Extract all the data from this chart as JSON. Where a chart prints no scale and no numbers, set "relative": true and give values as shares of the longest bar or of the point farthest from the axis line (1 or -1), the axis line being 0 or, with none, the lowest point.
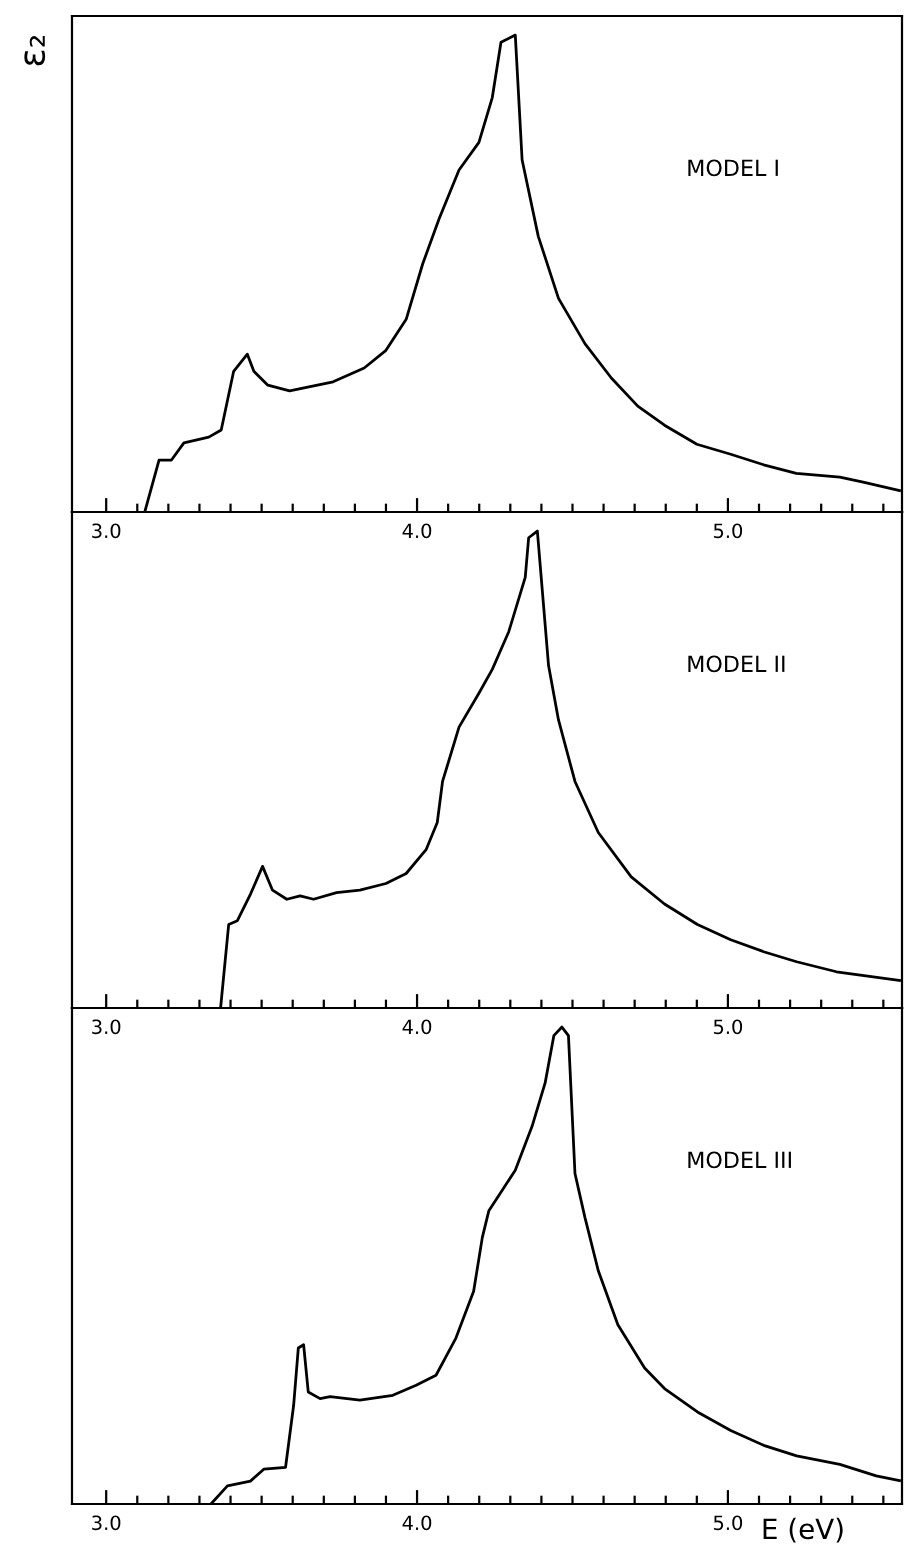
{
  "chart_data": [
    {
      "type": "line",
      "ylabel": "ε₂",
      "relative": true,
      "tick_labels": "x",
      "xlim": [
        2.89,
        5.56
      ],
      "annotations": [
        "MODEL I"
      ],
      "color": "#000000",
      "x": [
        3.124,
        3.17,
        3.21,
        3.25,
        3.33,
        3.37,
        3.41,
        3.454,
        3.475,
        3.52,
        3.59,
        3.73,
        3.83,
        3.9,
        3.965,
        4.018,
        4.071,
        4.135,
        4.199,
        4.242,
        4.27,
        4.316,
        4.338,
        4.39,
        4.455,
        4.54,
        4.625,
        4.71,
        4.796,
        4.9,
        5.009,
        5.115,
        5.22,
        5.36,
        5.435,
        5.552
      ],
      "values": [
        0,
        0.109,
        0.109,
        0.145,
        0.157,
        0.172,
        0.295,
        0.331,
        0.295,
        0.266,
        0.254,
        0.273,
        0.302,
        0.339,
        0.404,
        0.52,
        0.615,
        0.717,
        0.775,
        0.869,
        0.985,
        1,
        0.738,
        0.578,
        0.448,
        0.353,
        0.281,
        0.222,
        0.182,
        0.142,
        0.121,
        0.099,
        0.081,
        0.073,
        0.0625,
        0.045
      ],
      "xticks": [
        {
          "value": 3.0,
          "label": "3.0"
        },
        {
          "value": 3.1,
          "label": null
        },
        {
          "value": 3.2,
          "label": null
        },
        {
          "value": 3.3,
          "label": null
        },
        {
          "value": 3.4,
          "label": null
        },
        {
          "value": 3.5,
          "label": null
        },
        {
          "value": 3.6,
          "label": null
        },
        {
          "value": 3.7,
          "label": null
        },
        {
          "value": 3.8,
          "label": null
        },
        {
          "value": 3.9,
          "label": null
        },
        {
          "value": 4.0,
          "label": "4.0"
        },
        {
          "value": 4.1,
          "label": null
        },
        {
          "value": 4.2,
          "label": null
        },
        {
          "value": 4.3,
          "label": null
        },
        {
          "value": 4.4,
          "label": null
        },
        {
          "value": 4.5,
          "label": null
        },
        {
          "value": 4.6,
          "label": null
        },
        {
          "value": 4.7,
          "label": null
        },
        {
          "value": 4.8,
          "label": null
        },
        {
          "value": 4.9,
          "label": null
        },
        {
          "value": 5.0,
          "label": "5.0"
        },
        {
          "value": 5.1,
          "label": null
        },
        {
          "value": 5.2,
          "label": null
        },
        {
          "value": 5.3,
          "label": null
        },
        {
          "value": 5.4,
          "label": null
        },
        {
          "value": 5.5,
          "label": null
        }
      ]
    },
    {
      "type": "line",
      "relative": true,
      "tick_labels": "x",
      "xlim": [
        2.89,
        5.56
      ],
      "annotations": [
        "MODEL II"
      ],
      "color": "#000000",
      "x": [
        3.368,
        3.394,
        3.422,
        3.465,
        3.503,
        3.535,
        3.581,
        3.624,
        3.667,
        3.741,
        3.816,
        3.9,
        3.965,
        4.029,
        4.065,
        4.082,
        4.135,
        4.199,
        4.242,
        4.295,
        4.348,
        4.359,
        4.387,
        4.423,
        4.455,
        4.508,
        4.583,
        4.689,
        4.796,
        4.902,
        5.009,
        5.115,
        5.221,
        5.349,
        5.552
      ],
      "values": [
        0,
        0.175,
        0.183,
        0.24,
        0.297,
        0.247,
        0.228,
        0.235,
        0.228,
        0.242,
        0.247,
        0.261,
        0.282,
        0.332,
        0.389,
        0.475,
        0.589,
        0.66,
        0.71,
        0.789,
        0.903,
        0.986,
        1,
        0.718,
        0.604,
        0.475,
        0.368,
        0.275,
        0.218,
        0.175,
        0.143,
        0.118,
        0.097,
        0.076,
        0.058
      ],
      "xticks": [
        {
          "value": 3.0,
          "label": "3.0"
        },
        {
          "value": 3.1,
          "label": null
        },
        {
          "value": 3.2,
          "label": null
        },
        {
          "value": 3.3,
          "label": null
        },
        {
          "value": 3.4,
          "label": null
        },
        {
          "value": 3.5,
          "label": null
        },
        {
          "value": 3.6,
          "label": null
        },
        {
          "value": 3.7,
          "label": null
        },
        {
          "value": 3.8,
          "label": null
        },
        {
          "value": 3.9,
          "label": null
        },
        {
          "value": 4.0,
          "label": "4.0"
        },
        {
          "value": 4.1,
          "label": null
        },
        {
          "value": 4.2,
          "label": null
        },
        {
          "value": 4.3,
          "label": null
        },
        {
          "value": 4.4,
          "label": null
        },
        {
          "value": 4.5,
          "label": null
        },
        {
          "value": 4.6,
          "label": null
        },
        {
          "value": 4.7,
          "label": null
        },
        {
          "value": 4.8,
          "label": null
        },
        {
          "value": 4.9,
          "label": null
        },
        {
          "value": 5.0,
          "label": "5.0"
        },
        {
          "value": 5.1,
          "label": null
        },
        {
          "value": 5.2,
          "label": null
        },
        {
          "value": 5.3,
          "label": null
        },
        {
          "value": 5.4,
          "label": null
        },
        {
          "value": 5.5,
          "label": null
        }
      ]
    },
    {
      "type": "line",
      "xlabel": "E (eV)",
      "relative": true,
      "tick_labels": "x",
      "xlim": [
        2.89,
        5.56
      ],
      "annotations": [
        "MODEL III"
      ],
      "color": "#000000",
      "x": [
        3.337,
        3.39,
        3.464,
        3.507,
        3.577,
        3.603,
        3.618,
        3.635,
        3.65,
        3.688,
        3.72,
        3.816,
        3.922,
        3.997,
        4.061,
        4.125,
        4.182,
        4.21,
        4.231,
        4.274,
        4.316,
        4.37,
        4.412,
        4.44,
        4.466,
        4.487,
        4.508,
        4.54,
        4.583,
        4.646,
        4.732,
        4.796,
        4.902,
        5.009,
        5.115,
        5.221,
        5.36,
        5.477,
        5.552
      ],
      "values": [
        0,
        0.038,
        0.048,
        0.073,
        0.077,
        0.207,
        0.327,
        0.334,
        0.235,
        0.221,
        0.225,
        0.218,
        0.228,
        0.249,
        0.27,
        0.348,
        0.446,
        0.559,
        0.615,
        0.658,
        0.7,
        0.792,
        0.883,
        0.982,
        1,
        0.982,
        0.693,
        0.601,
        0.489,
        0.376,
        0.285,
        0.242,
        0.193,
        0.154,
        0.123,
        0.101,
        0.083,
        0.059,
        0.049
      ],
      "xticks": [
        {
          "value": 3.0,
          "label": "3.0"
        },
        {
          "value": 3.1,
          "label": null
        },
        {
          "value": 3.2,
          "label": null
        },
        {
          "value": 3.3,
          "label": null
        },
        {
          "value": 3.4,
          "label": null
        },
        {
          "value": 3.5,
          "label": null
        },
        {
          "value": 3.6,
          "label": null
        },
        {
          "value": 3.7,
          "label": null
        },
        {
          "value": 3.8,
          "label": null
        },
        {
          "value": 3.9,
          "label": null
        },
        {
          "value": 4.0,
          "label": "4.0"
        },
        {
          "value": 4.1,
          "label": null
        },
        {
          "value": 4.2,
          "label": null
        },
        {
          "value": 4.3,
          "label": null
        },
        {
          "value": 4.4,
          "label": null
        },
        {
          "value": 4.5,
          "label": null
        },
        {
          "value": 4.6,
          "label": null
        },
        {
          "value": 4.7,
          "label": null
        },
        {
          "value": 4.8,
          "label": null
        },
        {
          "value": 4.9,
          "label": null
        },
        {
          "value": 5.0,
          "label": "5.0"
        },
        {
          "value": 5.1,
          "label": null
        },
        {
          "value": 5.2,
          "label": null
        },
        {
          "value": 5.3,
          "label": null
        },
        {
          "value": 5.4,
          "label": null
        },
        {
          "value": 5.5,
          "label": null
        }
      ]
    }
  ]
}
